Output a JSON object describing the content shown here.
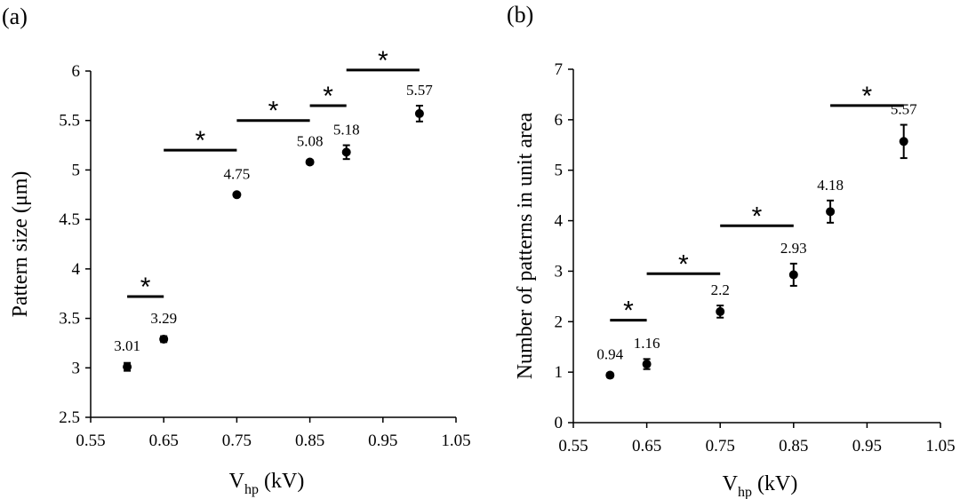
{
  "chart_data": [
    {
      "type": "scatter",
      "panel": "(a)",
      "xlabel": "V",
      "xlabel_sub": "hp",
      "xlabel_unit": " (kV)",
      "ylabel": "Pattern size (μm)",
      "xlim": [
        0.55,
        1.05
      ],
      "ylim": [
        2.5,
        6
      ],
      "xticks": [
        "0.55",
        "0.65",
        "0.75",
        "0.85",
        "0.95",
        "1.05"
      ],
      "yticks": [
        "2.5",
        "3",
        "3.5",
        "4",
        "4.5",
        "5",
        "5.5",
        "6"
      ],
      "points": [
        {
          "x": 0.6,
          "y": 3.01,
          "err": 0.04,
          "label": "3.01"
        },
        {
          "x": 0.65,
          "y": 3.29,
          "err": 0.03,
          "label": "3.29"
        },
        {
          "x": 0.75,
          "y": 4.75,
          "err": 0.02,
          "label": "4.75"
        },
        {
          "x": 0.85,
          "y": 5.08,
          "err": 0.02,
          "label": "5.08"
        },
        {
          "x": 0.9,
          "y": 5.18,
          "err": 0.07,
          "label": "5.18"
        },
        {
          "x": 1.0,
          "y": 5.57,
          "err": 0.08,
          "label": "5.57"
        }
      ],
      "significance": [
        {
          "x1": 0.6,
          "x2": 0.65,
          "y": 3.72,
          "label": "*"
        },
        {
          "x1": 0.65,
          "x2": 0.75,
          "y": 5.2,
          "label": "*"
        },
        {
          "x1": 0.75,
          "x2": 0.85,
          "y": 5.5,
          "label": "*"
        },
        {
          "x1": 0.85,
          "x2": 0.9,
          "y": 5.65,
          "label": "*"
        },
        {
          "x1": 0.9,
          "x2": 1.0,
          "y": 6.01,
          "label": "*"
        }
      ]
    },
    {
      "type": "scatter",
      "panel": "(b)",
      "xlabel": "V",
      "xlabel_sub": "hp",
      "xlabel_unit": " (kV)",
      "ylabel": "Number of patterns in unit area",
      "xlim": [
        0.55,
        1.05
      ],
      "ylim": [
        0,
        7
      ],
      "xticks": [
        "0.55",
        "0.65",
        "0.75",
        "0.85",
        "0.95",
        "1.05"
      ],
      "yticks": [
        "0",
        "1",
        "2",
        "3",
        "4",
        "5",
        "6",
        "7"
      ],
      "points": [
        {
          "x": 0.6,
          "y": 0.94,
          "err": 0.04,
          "label": "0.94"
        },
        {
          "x": 0.65,
          "y": 1.16,
          "err": 0.1,
          "label": "1.16"
        },
        {
          "x": 0.75,
          "y": 2.2,
          "err": 0.12,
          "label": "2.2"
        },
        {
          "x": 0.85,
          "y": 2.93,
          "err": 0.22,
          "label": "2.93"
        },
        {
          "x": 0.9,
          "y": 4.18,
          "err": 0.22,
          "label": "4.18"
        },
        {
          "x": 1.0,
          "y": 5.57,
          "err": 0.33,
          "label": "5.57"
        }
      ],
      "significance": [
        {
          "x1": 0.6,
          "x2": 0.65,
          "y": 2.03,
          "label": "*"
        },
        {
          "x1": 0.65,
          "x2": 0.75,
          "y": 2.95,
          "label": "*"
        },
        {
          "x1": 0.75,
          "x2": 0.85,
          "y": 3.9,
          "label": "*"
        },
        {
          "x1": 0.9,
          "x2": 1.0,
          "y": 6.28,
          "label": "*"
        }
      ]
    }
  ]
}
